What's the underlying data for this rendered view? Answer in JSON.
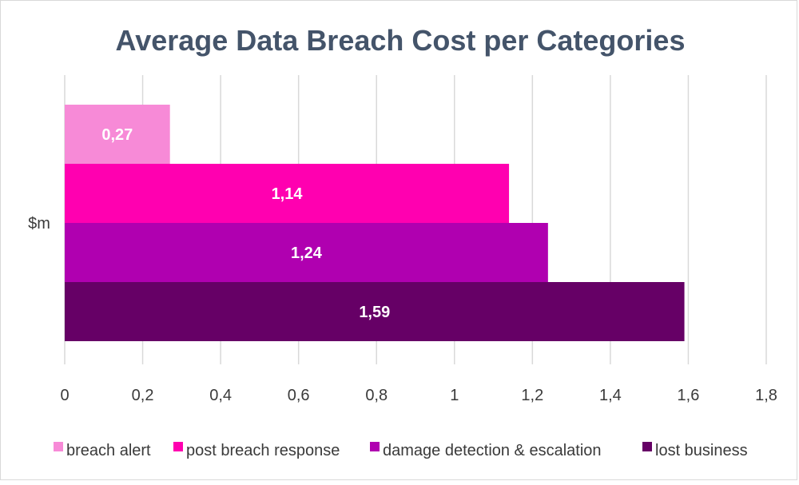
{
  "chart_data": {
    "type": "bar",
    "orientation": "horizontal",
    "title": "Average Data Breach Cost per Categories",
    "categories": [
      "$m"
    ],
    "series": [
      {
        "name": "breach alert",
        "values": [
          0.27
        ],
        "label": "0,27",
        "color": "#f78ad7"
      },
      {
        "name": "post breach response",
        "values": [
          1.14
        ],
        "label": "1,14",
        "color": "#ff00b0"
      },
      {
        "name": "damage detection & escalation",
        "values": [
          1.24
        ],
        "label": "1,24",
        "color": "#b000b0"
      },
      {
        "name": "lost business",
        "values": [
          1.59
        ],
        "label": "1,59",
        "color": "#660066"
      }
    ],
    "xlim": [
      0,
      1.8
    ],
    "x_ticks": [
      "0",
      "0,2",
      "0,4",
      "0,6",
      "0,8",
      "1",
      "1,2",
      "1,4",
      "1,6",
      "1,8"
    ],
    "grid": true,
    "legend_position": "bottom"
  }
}
